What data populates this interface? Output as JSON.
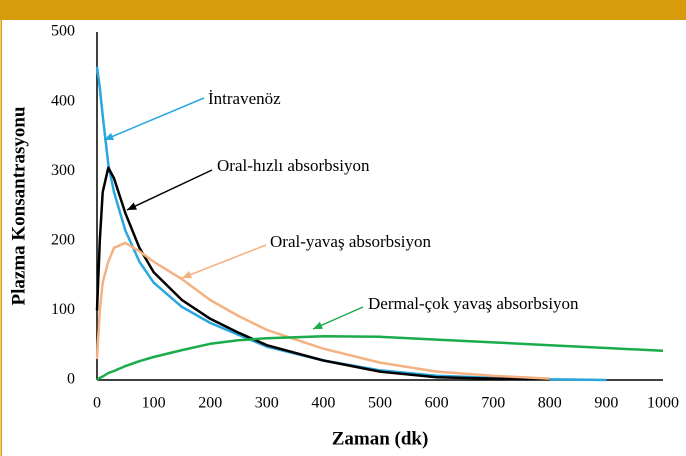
{
  "chart_data": {
    "type": "line",
    "x_label": "Zaman (dk)",
    "y_label": "Plazma Konsantrasyonu",
    "x": [
      0,
      5,
      10,
      20,
      30,
      50,
      75,
      100,
      150,
      200,
      250,
      300,
      400,
      500,
      600,
      700,
      800,
      900,
      1000
    ],
    "series": [
      {
        "name": "İntravenöz",
        "color": "#2aa7df",
        "values": [
          450,
          420,
          380,
          310,
          270,
          215,
          170,
          140,
          105,
          82,
          65,
          48,
          28,
          14,
          6,
          3,
          1,
          0,
          null
        ]
      },
      {
        "name": "Oral-hızlı absorbsiyon",
        "color": "#000000",
        "values": [
          100,
          200,
          270,
          305,
          290,
          240,
          190,
          155,
          115,
          88,
          68,
          50,
          28,
          12,
          4,
          2,
          1,
          null,
          null
        ]
      },
      {
        "name": "Oral-yavaş absorbsiyon",
        "color": "#f4b183",
        "values": [
          30,
          100,
          140,
          170,
          190,
          197,
          185,
          170,
          145,
          115,
          92,
          72,
          45,
          25,
          12,
          6,
          2,
          null,
          null
        ]
      },
      {
        "name": "Dermal-çok yavaş absorbsiyon",
        "color": "#1aab4b",
        "values": [
          0,
          3,
          5,
          10,
          13,
          20,
          27,
          33,
          43,
          52,
          57,
          60,
          63,
          62,
          58,
          54,
          50,
          46,
          42
        ]
      }
    ],
    "xlim": [
      0,
      1000
    ],
    "xticks": [
      0,
      100,
      200,
      300,
      400,
      500,
      600,
      700,
      800,
      900,
      1000
    ],
    "ylim": [
      0,
      500
    ],
    "yticks": [
      0,
      100,
      200,
      300,
      400,
      500
    ],
    "grid": false
  }
}
